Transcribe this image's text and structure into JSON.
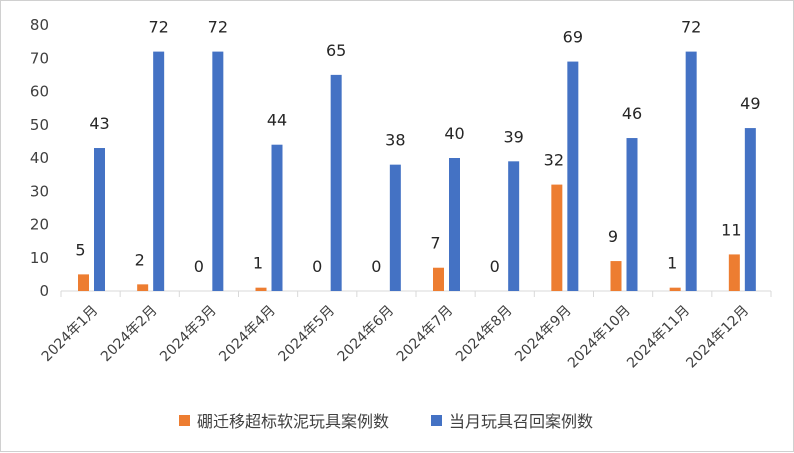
{
  "chart_data": {
    "type": "bar",
    "categories": [
      "2024年1月",
      "2024年2月",
      "2024年3月",
      "2024年4月",
      "2024年5月",
      "2024年6月",
      "2024年7月",
      "2024年8月",
      "2024年9月",
      "2024年10月",
      "2024年11月",
      "2024年12月"
    ],
    "series": [
      {
        "name": "硼迁移超标软泥玩具案例数",
        "color": "#ed7d31",
        "values": [
          5,
          2,
          0,
          1,
          0,
          0,
          7,
          0,
          32,
          9,
          1,
          11
        ]
      },
      {
        "name": "当月玩具召回案例数",
        "color": "#4472c4",
        "values": [
          43,
          72,
          72,
          44,
          65,
          38,
          40,
          39,
          69,
          46,
          72,
          49
        ]
      }
    ],
    "y_ticks": [
      "0",
      "10",
      "20",
      "30",
      "40",
      "50",
      "60",
      "70",
      "80"
    ],
    "ylim": [
      0,
      80
    ],
    "grid": false,
    "legend_position": "bottom",
    "data_labels": true
  }
}
